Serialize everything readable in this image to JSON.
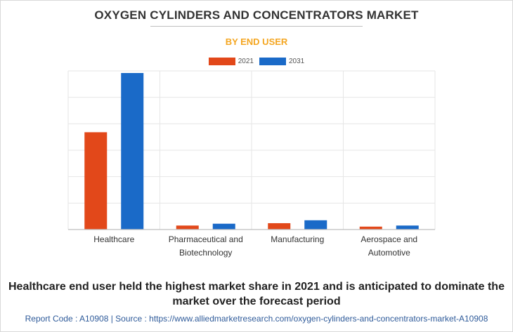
{
  "header": {
    "title": "OXYGEN CYLINDERS AND CONCENTRATORS MARKET",
    "subtitle": "BY END USER"
  },
  "colors": {
    "subtitle": "#f4a621",
    "series_2021": "#e2481a",
    "series_2031": "#1a6ac8",
    "grid": "#e6e6e6",
    "axis": "#bfbfbf"
  },
  "chart_data": {
    "type": "bar",
    "title": "",
    "xlabel": "",
    "ylabel": "",
    "ylim": [
      0,
      6
    ],
    "grid": true,
    "legend": "top-center",
    "categories": [
      [
        "Healthcare"
      ],
      [
        "Pharmaceutical and",
        "Biotechnology"
      ],
      [
        "Manufacturing"
      ],
      [
        "Aerospace and",
        "Automotive"
      ]
    ],
    "series": [
      {
        "name": "2021",
        "values": [
          3.68,
          0.15,
          0.24,
          0.11
        ]
      },
      {
        "name": "2031",
        "values": [
          5.92,
          0.22,
          0.35,
          0.15
        ]
      }
    ]
  },
  "footer": {
    "caption_line1": "Healthcare end user held the highest market share in 2021 and is anticipated to dominate the",
    "caption_line2": "market over the forecast period",
    "report_code": "Report Code : A10908  |  Source : https://www.alliedmarketresearch.com/oxygen-cylinders-and-concentrators-market-A10908"
  }
}
